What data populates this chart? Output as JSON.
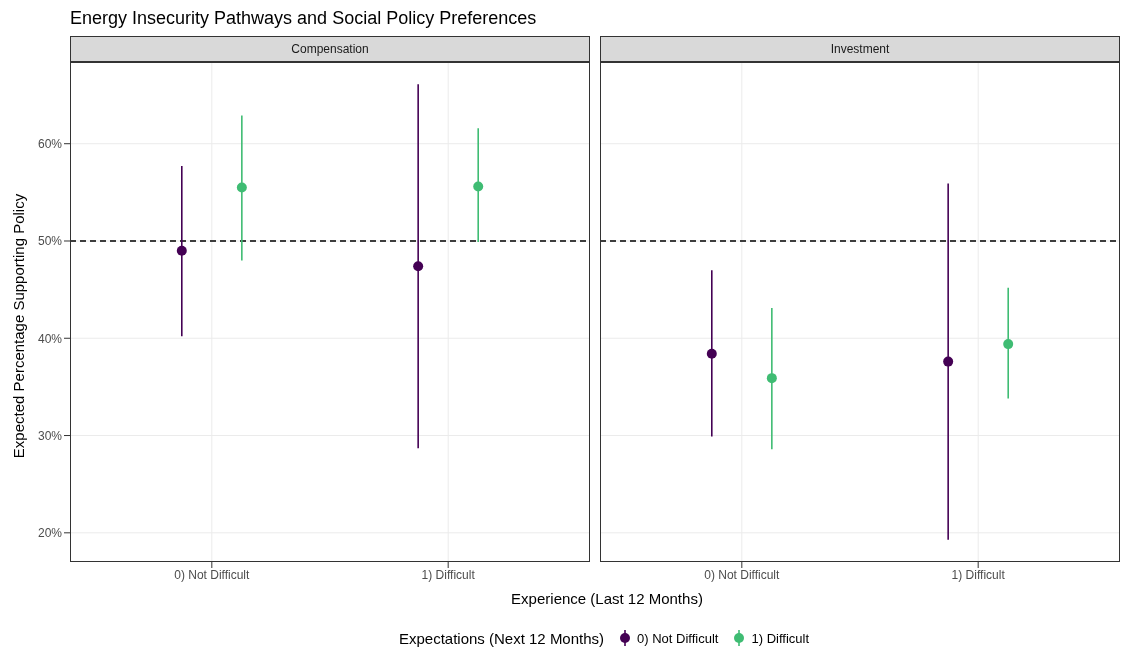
{
  "chart_data": [
    {
      "type": "scatter",
      "title": "Energy Insecurity Pathways and Social Policy Preferences",
      "subtitle": "Compensation",
      "xlabel": "Experience (Last 12 Months)",
      "ylabel": "Expected Percentage Supporting Policy",
      "legend_title": "Expectations (Next 12 Months)",
      "legend": "bottom",
      "marker": "circle",
      "grid": true,
      "categories": [
        "0) Not Difficult",
        "1) Difficult"
      ],
      "series": [
        {
          "name": "0) Not Difficult",
          "color": "#440154",
          "values": [
            49.0,
            47.4
          ],
          "errors": [
            [
              40.2,
              57.7
            ],
            [
              28.7,
              66.1
            ]
          ]
        },
        {
          "name": "1) Difficult",
          "color": "#3fbc73",
          "values": [
            55.5,
            55.6
          ],
          "errors": [
            [
              48.0,
              62.9
            ],
            [
              49.9,
              61.6
            ]
          ]
        }
      ],
      "ylim": [
        17,
        68.4
      ],
      "yticks": [
        {
          "value": 20,
          "label": "20%"
        },
        {
          "value": 30,
          "label": "30%"
        },
        {
          "value": 40,
          "label": "40%"
        },
        {
          "value": 50,
          "label": "50%"
        },
        {
          "value": 60,
          "label": "60%"
        }
      ],
      "ref_lines": [
        {
          "axis": "y",
          "value": 50,
          "color": "#000000",
          "line_style": "dashed"
        }
      ]
    },
    {
      "type": "scatter",
      "subtitle": "Investment",
      "marker": "circle",
      "grid": true,
      "tick_labels": "x",
      "categories": [
        "0) Not Difficult",
        "1) Difficult"
      ],
      "series": [
        {
          "color": "#440154",
          "values": [
            38.4,
            37.6
          ],
          "errors": [
            [
              29.9,
              47.0
            ],
            [
              19.3,
              55.9
            ]
          ]
        },
        {
          "color": "#3fbc73",
          "values": [
            35.9,
            39.4
          ],
          "errors": [
            [
              28.6,
              43.1
            ],
            [
              33.8,
              45.2
            ]
          ]
        }
      ],
      "ylim": [
        17,
        68.4
      ],
      "yticks": [
        20,
        30,
        40,
        50,
        60
      ],
      "ref_lines": [
        {
          "axis": "y",
          "value": 50,
          "color": "#000000",
          "line_style": "dashed"
        }
      ]
    }
  ]
}
